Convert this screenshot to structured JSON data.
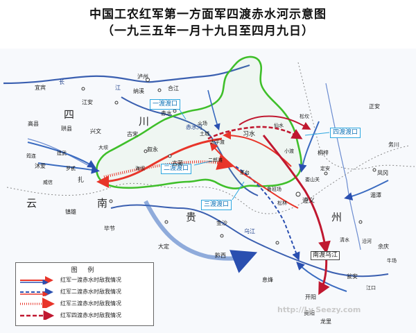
{
  "title": "中国工农红军第一方面军四渡赤水河示意图",
  "subtitle": "（一九三五年一月十九日至四月九日）",
  "colors": {
    "first_crossing": "#e8352a",
    "second_crossing": "#2a4fb0",
    "third_crossing": "#e8352a",
    "fourth_crossing": "#c01830",
    "enemy": "#3a6bc0",
    "province_border": "#3fbf2a",
    "callout_border": "#2aa6e0"
  },
  "crossings": {
    "first": "一渡渡口",
    "second": "二渡渡口",
    "third": "三渡渡口",
    "fourth": "四渡渡口"
  },
  "regions": {
    "sichuan_1": "四",
    "sichuan_2": "川",
    "yunnan_1": "云",
    "yunnan_2": "南",
    "guizhou": "贵",
    "guizhou_2": "州"
  },
  "places": {
    "luzhou": "泸州",
    "yibin": "宜宾",
    "changjiang_1": "长",
    "changjiang_2": "江",
    "najixi": "纳溪",
    "hejiang": "合江",
    "jiangan": "江安",
    "gaoxian": "高县",
    "gongxian": "珙县",
    "xingwen": "兴文",
    "gusong": "古宋",
    "chishui": "赤水",
    "xuyong": "叙永",
    "gulin": "古蔺",
    "daba": "大坝",
    "haiba": "海坝",
    "junlian": "筠连",
    "jianwu": "建武",
    "muai": "沐爱",
    "luobiao": "罗甙",
    "zhaxi": "扎",
    "zhenxiong": "镇雄",
    "weixin": "威信",
    "bijie": "毕节",
    "dading": "大定",
    "qianxi": "黔西",
    "jinsha": "金沙",
    "zunyi": "遵义",
    "tongzi": "桐梓",
    "songkan": "松坎",
    "zhengan": "正安",
    "fenggang": "凤冈",
    "meitan": "湄潭",
    "wuchuan": "务川",
    "yuqing": "余庆",
    "wengan": "瓮安",
    "xifeng": "息烽",
    "kaiyang": "开阳",
    "niuchang": "牛场",
    "qingshui": "清水",
    "longli": "龙里",
    "xishui": "习水",
    "tucheng": "土城",
    "maotai": "茅台",
    "xiaoshu": "仙水",
    "taipingdu": "太平渡",
    "erlangtan": "二郎滩",
    "loushanguan": "娄山关",
    "wujiang": "乌江",
    "nandu_wujiang": "南渡乌江",
    "lushan": "鲁班场",
    "dingan": "定安",
    "songlin": "松林",
    "chishui_river": "赤水河",
    "huozhang": "火场",
    "xiaodu": "小渡",
    "guiyang": "贵阳",
    "yanhe": "沿河",
    "jiangkou": "江口"
  },
  "legend": {
    "title": "图 例",
    "items": [
      {
        "label": "红军一渡赤水时敌我情况"
      },
      {
        "label": "红军二渡赤水时敌我情况"
      },
      {
        "label": "红军三渡赤水时敌我情况"
      },
      {
        "label": "红军四渡赤水时敌我情况"
      }
    ]
  },
  "watermark": "http://Ly.Seezy.com"
}
